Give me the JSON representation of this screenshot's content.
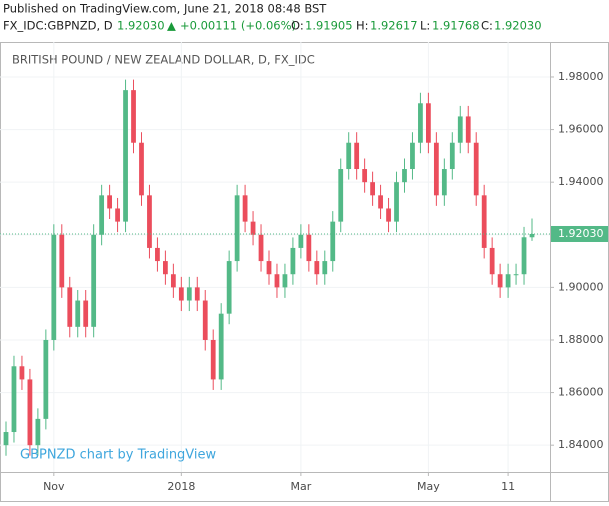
{
  "header": {
    "published": "Published on TradingView.com, June 21, 2018 08:48 BST",
    "symbol": "FX_IDC:GBPNZD, D",
    "last": "1.92030",
    "arrow": "▲",
    "change": "+0.00111 (+0.06%)",
    "o_label": "O:",
    "o": "1.91905",
    "h_label": "H:",
    "h": "1.92617",
    "l_label": "L:",
    "l": "1.91768",
    "c_label": "C:",
    "c": "1.92030"
  },
  "chart_data": {
    "type": "candlestick",
    "title": "BRITISH POUND / NEW ZEALAND DOLLAR, D, FX_IDC",
    "watermark": "GBPNZD chart by TradingView",
    "up_color": "#53b987",
    "down_color": "#eb4d5c",
    "categories": [
      null,
      null,
      null,
      null,
      null,
      null,
      "Nov",
      null,
      null,
      null,
      null,
      null,
      null,
      null,
      null,
      null,
      null,
      null,
      null,
      null,
      null,
      null,
      "2018",
      null,
      null,
      null,
      null,
      null,
      null,
      null,
      null,
      null,
      null,
      null,
      null,
      null,
      null,
      "Mar",
      null,
      null,
      null,
      null,
      null,
      null,
      null,
      null,
      null,
      null,
      null,
      null,
      null,
      null,
      null,
      "May",
      null,
      null,
      null,
      null,
      null,
      null,
      null,
      null,
      null,
      "11",
      null,
      null,
      null
    ],
    "open": [
      1.84,
      1.845,
      1.87,
      1.865,
      1.84,
      1.85,
      1.88,
      1.92,
      1.9,
      1.885,
      1.895,
      1.885,
      1.92,
      1.935,
      1.93,
      1.925,
      1.975,
      1.955,
      1.935,
      1.915,
      1.91,
      1.905,
      1.9,
      1.895,
      1.9,
      1.895,
      1.88,
      1.865,
      1.89,
      1.91,
      1.935,
      1.925,
      1.92,
      1.91,
      1.905,
      1.9,
      1.905,
      1.915,
      1.92,
      1.91,
      1.905,
      1.91,
      1.925,
      1.945,
      1.955,
      1.945,
      1.94,
      1.935,
      1.93,
      1.925,
      1.94,
      1.945,
      1.955,
      1.97,
      1.955,
      1.935,
      1.945,
      1.955,
      1.965,
      1.955,
      1.935,
      1.915,
      1.905,
      1.9,
      1.905,
      1.905,
      1.91905
    ],
    "high": [
      1.849,
      1.874,
      1.874,
      1.869,
      1.854,
      1.884,
      1.924,
      1.924,
      1.904,
      1.899,
      1.899,
      1.924,
      1.939,
      1.939,
      1.934,
      1.979,
      1.979,
      1.959,
      1.939,
      1.919,
      1.914,
      1.909,
      1.904,
      1.904,
      1.904,
      1.899,
      1.884,
      1.894,
      1.914,
      1.939,
      1.939,
      1.929,
      1.924,
      1.914,
      1.909,
      1.909,
      1.919,
      1.924,
      1.924,
      1.914,
      1.914,
      1.929,
      1.949,
      1.959,
      1.959,
      1.949,
      1.944,
      1.939,
      1.934,
      1.944,
      1.949,
      1.959,
      1.974,
      1.974,
      1.959,
      1.949,
      1.959,
      1.969,
      1.969,
      1.959,
      1.939,
      1.919,
      1.909,
      1.909,
      1.909,
      1.923,
      1.92617
    ],
    "low": [
      1.836,
      1.841,
      1.861,
      1.836,
      1.836,
      1.846,
      1.876,
      1.896,
      1.881,
      1.881,
      1.881,
      1.881,
      1.916,
      1.926,
      1.921,
      1.921,
      1.951,
      1.931,
      1.911,
      1.906,
      1.901,
      1.896,
      1.891,
      1.891,
      1.891,
      1.876,
      1.861,
      1.861,
      1.886,
      1.906,
      1.921,
      1.916,
      1.906,
      1.901,
      1.896,
      1.896,
      1.901,
      1.911,
      1.906,
      1.901,
      1.901,
      1.906,
      1.921,
      1.941,
      1.941,
      1.936,
      1.931,
      1.926,
      1.921,
      1.921,
      1.936,
      1.941,
      1.951,
      1.951,
      1.931,
      1.931,
      1.941,
      1.951,
      1.951,
      1.931,
      1.911,
      1.901,
      1.896,
      1.896,
      1.901,
      1.901,
      1.91768
    ],
    "close": [
      1.845,
      1.87,
      1.865,
      1.84,
      1.85,
      1.88,
      1.92,
      1.9,
      1.885,
      1.895,
      1.885,
      1.92,
      1.935,
      1.93,
      1.925,
      1.975,
      1.955,
      1.935,
      1.915,
      1.91,
      1.905,
      1.9,
      1.895,
      1.9,
      1.895,
      1.88,
      1.865,
      1.89,
      1.91,
      1.935,
      1.925,
      1.92,
      1.91,
      1.905,
      1.9,
      1.905,
      1.915,
      1.92,
      1.91,
      1.905,
      1.91,
      1.925,
      1.945,
      1.955,
      1.945,
      1.94,
      1.935,
      1.93,
      1.925,
      1.94,
      1.945,
      1.955,
      1.97,
      1.955,
      1.935,
      1.945,
      1.955,
      1.965,
      1.955,
      1.935,
      1.915,
      1.905,
      1.9,
      1.905,
      1.905,
      1.91905,
      1.9203
    ],
    "ylim": [
      1.8298,
      1.9933
    ],
    "yticks": [
      {
        "value": 1.84,
        "label": "1.84000"
      },
      {
        "value": 1.86,
        "label": "1.86000"
      },
      {
        "value": 1.88,
        "label": "1.88000"
      },
      {
        "value": 1.9,
        "label": "1.90000"
      },
      {
        "value": 1.92,
        "label": "1.92000"
      },
      {
        "value": 1.94,
        "label": "1.94000"
      },
      {
        "value": 1.96,
        "label": "1.96000"
      },
      {
        "value": 1.98,
        "label": "1.98000"
      }
    ],
    "last_price": {
      "value": 1.9203,
      "label": "1.92030"
    },
    "last_color": "#53b987",
    "grid": true
  }
}
